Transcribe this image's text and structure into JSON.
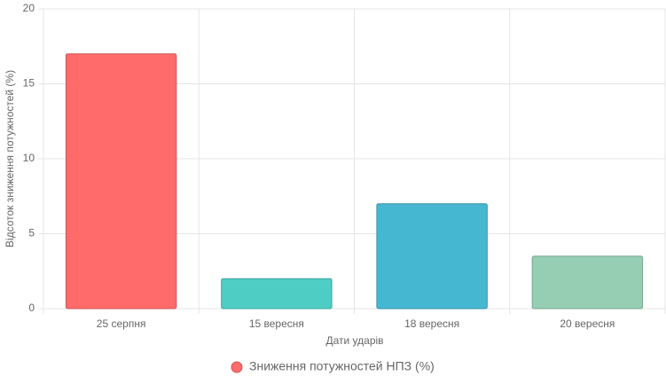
{
  "chart_data": {
    "type": "bar",
    "categories": [
      "25 серпня",
      "15 вересня",
      "18 вересня",
      "20 вересня"
    ],
    "series": [
      {
        "name": "Зниження потужностей НПЗ (%)",
        "colors": [
          "#ff6b6b",
          "#4ecdc4",
          "#45b7d1",
          "#96ceb4"
        ],
        "values": [
          17,
          2,
          7,
          3.5
        ]
      }
    ],
    "x_label": "Дати ударів",
    "y_label": "Відсоток зниження потужностей (%)",
    "ylim": [
      0,
      20
    ],
    "yticks": [
      0,
      5,
      10,
      15,
      20
    ],
    "grid": true,
    "legend": "bottom"
  }
}
